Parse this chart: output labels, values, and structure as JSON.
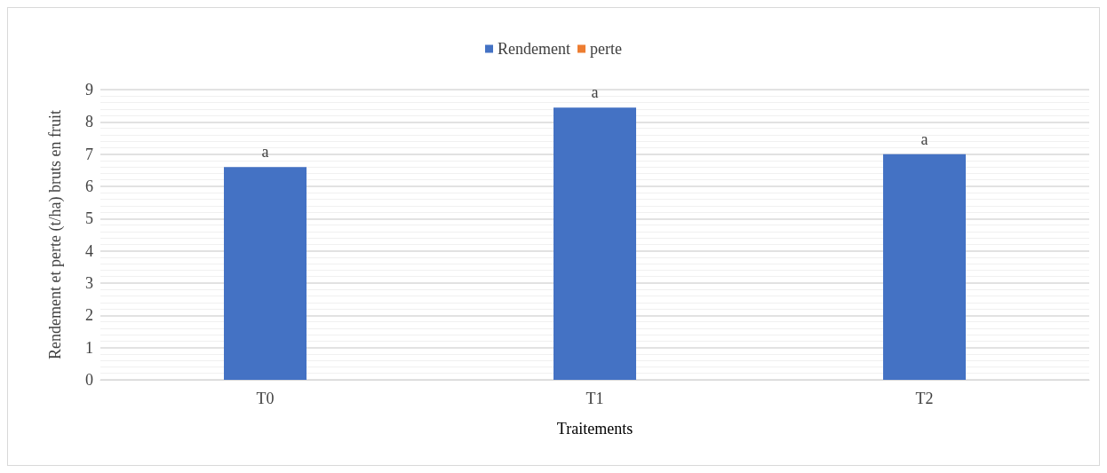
{
  "chart_data": {
    "type": "bar",
    "stacked": true,
    "xlabel": "Traitements",
    "ylabel": "Rendement et perte (t/ha) bruts en fruit",
    "categories": [
      "T0",
      "T1",
      "T2"
    ],
    "series": [
      {
        "name": "Rendement",
        "color": "#4472c4",
        "values": [
          6.6,
          8.44,
          7.0
        ]
      },
      {
        "name": "perte",
        "color": "#ed7d31",
        "values": [
          0,
          0,
          0
        ]
      }
    ],
    "ylim": [
      0,
      9
    ],
    "yticks": [
      0,
      1,
      2,
      3,
      4,
      5,
      6,
      7,
      8,
      9
    ],
    "grid": "y",
    "legend": "top",
    "annotations": [
      {
        "text": "a",
        "x": "T0",
        "y": 6.6
      },
      {
        "text": "a",
        "x": "T1",
        "y": 8.44
      },
      {
        "text": "a",
        "x": "T2",
        "y": 7.0
      }
    ]
  }
}
